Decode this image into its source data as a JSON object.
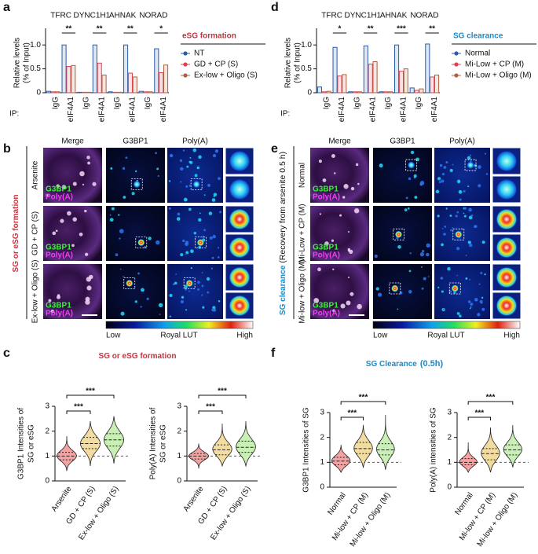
{
  "panel_labels": [
    "a",
    "b",
    "c",
    "d",
    "e",
    "f"
  ],
  "chart_data": [
    {
      "type": "bar",
      "title": "eSG formation",
      "title_color": "#c8323c",
      "groups": [
        "TFRC",
        "DYNC1H1",
        "AHNAK",
        "NORAD"
      ],
      "significance": [
        "**",
        "**",
        "**",
        "*"
      ],
      "x_prefix": "IP:",
      "categories": [
        "IgG",
        "eIF4A1",
        "IgG",
        "eIF4A1",
        "IgG",
        "eIF4A1",
        "IgG",
        "eIF4A1"
      ],
      "ylabel": [
        "Relative levels",
        "(% of Input)"
      ],
      "ylim": [
        0,
        1.25
      ],
      "yticks": [
        0,
        0.5,
        {
          "value": 1,
          "label": "1.0"
        }
      ],
      "series": [
        {
          "name": "NT",
          "color": "#2a5caa",
          "values": [
            0.03,
            1.0,
            0.01,
            1.0,
            0.02,
            1.0,
            0.03,
            0.92
          ]
        },
        {
          "name": "GD + CP (S)",
          "color": "#e04050",
          "values": [
            0.02,
            0.55,
            0.01,
            0.62,
            0.01,
            0.41,
            0.02,
            0.42
          ]
        },
        {
          "name": "Ex-low + Oligo (S)",
          "color": "#b06040",
          "values": [
            0.02,
            0.57,
            0.01,
            0.37,
            0.01,
            0.33,
            0.02,
            0.58
          ]
        }
      ]
    },
    {
      "type": "bar",
      "title": "SG clearance",
      "title_color": "#1a8ac8",
      "groups": [
        "TFRC",
        "DYNC1H1",
        "AHNAK",
        "NORAD"
      ],
      "significance": [
        "*",
        "**",
        "***",
        "**"
      ],
      "x_prefix": "IP:",
      "categories": [
        "IgG",
        "eIF4A1",
        "IgG",
        "eIF4A1",
        "IgG",
        "eIF4A1",
        "IgG",
        "eIF4A1"
      ],
      "ylabel": [
        "Relative levels",
        "(% of Input)"
      ],
      "ylim": [
        0,
        1.25
      ],
      "yticks": [
        0,
        0.5,
        {
          "value": 1,
          "label": "1.0"
        }
      ],
      "series": [
        {
          "name": "Normal",
          "color": "#2a5caa",
          "values": [
            0.12,
            0.95,
            0.02,
            0.98,
            0.02,
            1.0,
            0.1,
            1.02
          ]
        },
        {
          "name": "Mi-Low + CP (M)",
          "color": "#e04050",
          "values": [
            0.02,
            0.35,
            0.02,
            0.6,
            0.02,
            0.45,
            0.05,
            0.33
          ]
        },
        {
          "name": "Mi-Low + Oligo (M)",
          "color": "#b06040",
          "values": [
            0.03,
            0.38,
            0.02,
            0.65,
            0.02,
            0.5,
            0.08,
            0.37
          ]
        }
      ]
    },
    {
      "type": "violin",
      "title": "SG or eSG formation",
      "title_color": "#c8323c",
      "categories": [
        "Arsenite",
        "GD + CP (S)",
        "Ex-low + Oligo (S)"
      ],
      "colors": [
        "#f4a3a3",
        "#f2dca0",
        "#c9f0b4"
      ],
      "ylim": [
        0,
        3
      ],
      "yticks": [
        0,
        1,
        2,
        3
      ],
      "ref_line": 1,
      "subplots": [
        {
          "ylabel": [
            "G3BP1 Intensities of",
            "SG or eSG"
          ],
          "min": [
            0.4,
            0.6,
            0.7
          ],
          "q1": [
            0.85,
            1.3,
            1.4
          ],
          "median": [
            1.0,
            1.5,
            1.65
          ],
          "q3": [
            1.15,
            1.75,
            1.9
          ],
          "max": [
            1.8,
            2.4,
            2.6
          ],
          "significance": [
            null,
            "***",
            "***"
          ]
        },
        {
          "ylabel": [
            "Poly(A) Intensities of",
            "SG or eSG"
          ],
          "min": [
            0.5,
            0.6,
            0.6
          ],
          "q1": [
            0.88,
            1.05,
            1.15
          ],
          "median": [
            1.0,
            1.25,
            1.35
          ],
          "q3": [
            1.1,
            1.45,
            1.6
          ],
          "max": [
            1.5,
            2.3,
            2.4
          ],
          "significance": [
            null,
            "***",
            "***"
          ]
        }
      ]
    },
    {
      "type": "violin",
      "title": "SG Clearance",
      "title_note": "(0.5h)",
      "title_color": "#1a8ac8",
      "categories": [
        "Normal",
        "Mi-low + CP (M)",
        "Mi-low + Oligo (M)"
      ],
      "colors": [
        "#f4a3a3",
        "#f2dca0",
        "#c9f0b4"
      ],
      "ylim": [
        0,
        3
      ],
      "yticks": [
        0,
        1,
        2,
        3
      ],
      "ref_line": 1,
      "subplots": [
        {
          "ylabel": [
            "G3BP1 Intensities of SG"
          ],
          "min": [
            0.6,
            0.8,
            0.7
          ],
          "q1": [
            0.9,
            1.35,
            1.3
          ],
          "median": [
            1.05,
            1.55,
            1.5
          ],
          "q3": [
            1.2,
            1.8,
            1.75
          ],
          "max": [
            1.7,
            2.5,
            2.9
          ],
          "significance": [
            null,
            "***",
            "***"
          ]
        },
        {
          "ylabel": [
            "Poly(A) intensities of SG"
          ],
          "min": [
            0.6,
            0.6,
            0.8
          ],
          "q1": [
            0.9,
            1.1,
            1.3
          ],
          "median": [
            1.0,
            1.35,
            1.5
          ],
          "q3": [
            1.15,
            1.55,
            1.7
          ],
          "max": [
            1.8,
            2.4,
            2.5
          ],
          "significance": [
            null,
            "***",
            "***"
          ]
        }
      ]
    }
  ],
  "image_panels": [
    {
      "title": "SG or eSG formation",
      "title_color": "#c8323c",
      "columns": [
        "Merge",
        "G3BP1",
        "Poly(A)"
      ],
      "rows": [
        "Arsenite",
        "GD + CP (S)",
        "Ex-low + Oligo (S)"
      ],
      "overlay_labels": [
        "G3BP1",
        "Poly(A)"
      ],
      "colorbar": [
        "Low",
        "Royal LUT",
        "High"
      ]
    },
    {
      "title": "SG clearance",
      "title_note": "(Recovery from arsenite 0.5 h)",
      "title_color": "#1a8ac8",
      "columns": [
        "Merge",
        "G3BP1",
        "Poly(A)"
      ],
      "rows": [
        "Normal",
        "Mi-Low + CP (M)",
        "Mi-low + Oligo (M)"
      ],
      "overlay_labels": [
        "G3BP1",
        "Poly(A)"
      ],
      "colorbar": [
        "Low",
        "Royal LUT",
        "High"
      ]
    }
  ]
}
